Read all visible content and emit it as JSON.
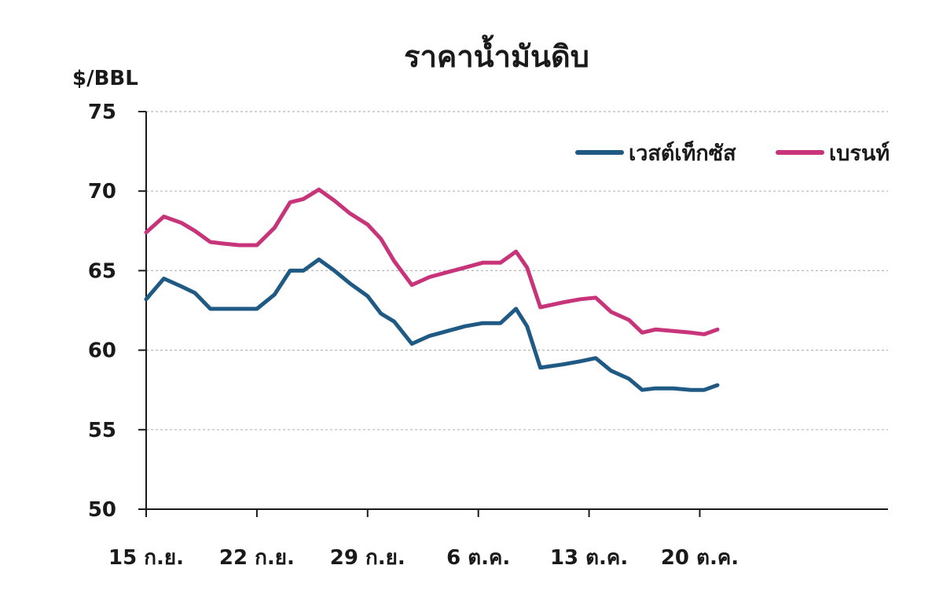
{
  "chart_data": {
    "type": "line",
    "title": "ราคาน้ำมันดิบ",
    "ylabel": "$/BBL",
    "xlabel": "",
    "ylim": [
      50,
      75
    ],
    "yticks": [
      50,
      55,
      60,
      65,
      70,
      75
    ],
    "x_range": [
      0,
      33.5
    ],
    "x_ticks": [
      {
        "label": "15 ก.ย.",
        "x": 0
      },
      {
        "label": "22 ก.ย.",
        "x": 5
      },
      {
        "label": "29 ก.ย.",
        "x": 10
      },
      {
        "label": "6 ต.ค.",
        "x": 15
      },
      {
        "label": "13 ต.ค.",
        "x": 20
      },
      {
        "label": "20 ต.ค.",
        "x": 25
      }
    ],
    "grid": true,
    "legend_position": "top-right",
    "series": [
      {
        "name": "เวสต์เท็กซัส",
        "color": "#1f5a84",
        "x": [
          0,
          0.8,
          1.6,
          2.2,
          2.9,
          3.5,
          4.2,
          5.0,
          5.8,
          6.5,
          7.1,
          7.8,
          8.5,
          9.2,
          10.0,
          10.6,
          11.2,
          12.0,
          12.8,
          13.6,
          14.4,
          15.2,
          16.0,
          16.7,
          17.2,
          17.8,
          18.8,
          19.6,
          20.3,
          21.0,
          21.8,
          22.4,
          23.0,
          23.8,
          24.6,
          25.2,
          25.8
        ],
        "values": [
          63.2,
          64.5,
          64.0,
          63.6,
          62.6,
          62.6,
          62.6,
          62.6,
          63.5,
          65.0,
          65.0,
          65.7,
          65.0,
          64.2,
          63.4,
          62.3,
          61.8,
          60.4,
          60.9,
          61.2,
          61.5,
          61.7,
          61.7,
          62.6,
          61.5,
          58.9,
          59.1,
          59.3,
          59.5,
          58.7,
          58.2,
          57.5,
          57.6,
          57.6,
          57.5,
          57.5,
          57.8
        ]
      },
      {
        "name": "เบรนท์",
        "color": "#c7347a",
        "x": [
          0,
          0.8,
          1.6,
          2.2,
          2.9,
          3.5,
          4.2,
          5.0,
          5.8,
          6.5,
          7.1,
          7.8,
          8.5,
          9.2,
          10.0,
          10.6,
          11.2,
          12.0,
          12.8,
          13.6,
          14.4,
          15.2,
          16.0,
          16.7,
          17.2,
          17.8,
          18.8,
          19.6,
          20.3,
          21.0,
          21.8,
          22.4,
          23.0,
          23.8,
          24.6,
          25.2,
          25.8
        ],
        "values": [
          67.4,
          68.4,
          68.0,
          67.5,
          66.8,
          66.7,
          66.6,
          66.6,
          67.7,
          69.3,
          69.5,
          70.1,
          69.4,
          68.6,
          67.9,
          67.0,
          65.6,
          64.1,
          64.6,
          64.9,
          65.2,
          65.5,
          65.5,
          66.2,
          65.2,
          62.7,
          63.0,
          63.2,
          63.3,
          62.4,
          61.9,
          61.1,
          61.3,
          61.2,
          61.1,
          61.0,
          61.3
        ]
      }
    ]
  }
}
